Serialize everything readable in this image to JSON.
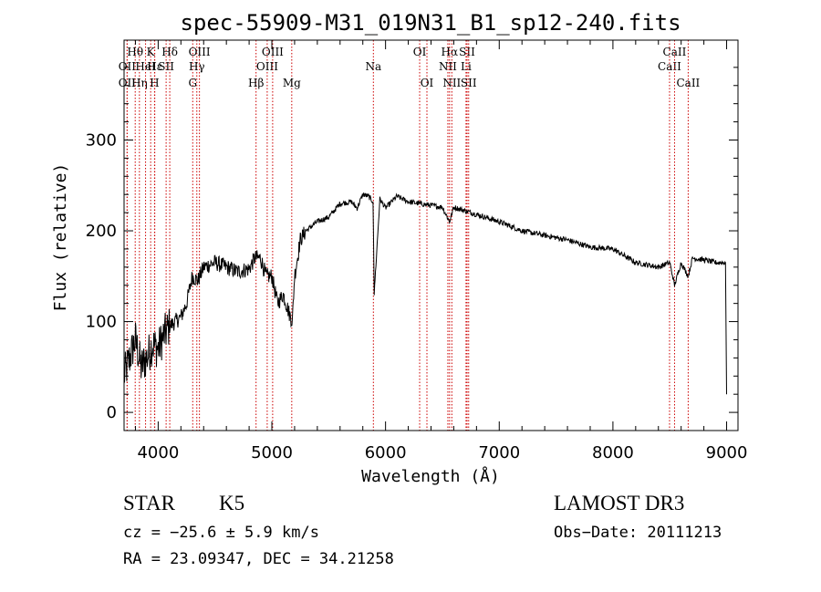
{
  "chart_data": {
    "type": "line",
    "title": "spec-55909-M31_019N31_B1_sp12-240.fits",
    "xlabel": "Wavelength (Å)",
    "ylabel": "Flux (relative)",
    "xlim": [
      3700,
      9100
    ],
    "ylim": [
      -20,
      410
    ],
    "xticks": [
      {
        "value": 4000,
        "label": "4000"
      },
      {
        "value": 5000,
        "label": "5000"
      },
      {
        "value": 6000,
        "label": "6000"
      },
      {
        "value": 7000,
        "label": "7000"
      },
      {
        "value": 8000,
        "label": "8000"
      },
      {
        "value": 9000,
        "label": "9000"
      }
    ],
    "yticks": [
      {
        "value": 0,
        "label": "0"
      },
      {
        "value": 100,
        "label": "100"
      },
      {
        "value": 200,
        "label": "200"
      },
      {
        "value": 300,
        "label": "300"
      }
    ],
    "series": [
      {
        "name": "flux",
        "x": [
          3700,
          3750,
          3800,
          3850,
          3900,
          3950,
          4000,
          4050,
          4100,
          4150,
          4200,
          4250,
          4300,
          4350,
          4400,
          4500,
          4600,
          4700,
          4800,
          4850,
          4900,
          4950,
          5000,
          5050,
          5100,
          5150,
          5180,
          5200,
          5250,
          5300,
          5400,
          5500,
          5600,
          5700,
          5750,
          5800,
          5850,
          5890,
          5900,
          5950,
          6000,
          6100,
          6200,
          6300,
          6400,
          6500,
          6563,
          6600,
          6700,
          6800,
          7000,
          7200,
          7400,
          7600,
          7800,
          8000,
          8200,
          8400,
          8500,
          8542,
          8600,
          8662,
          8700,
          8800,
          8900,
          8990,
          9000
        ],
        "y": [
          40,
          60,
          80,
          50,
          60,
          75,
          70,
          85,
          95,
          100,
          105,
          120,
          150,
          145,
          160,
          165,
          160,
          155,
          158,
          170,
          170,
          150,
          150,
          120,
          130,
          110,
          100,
          150,
          190,
          200,
          210,
          215,
          230,
          232,
          225,
          240,
          238,
          232,
          130,
          235,
          225,
          238,
          232,
          230,
          228,
          226,
          210,
          226,
          222,
          218,
          210,
          200,
          195,
          190,
          182,
          180,
          165,
          160,
          165,
          140,
          165,
          150,
          170,
          168,
          165,
          165,
          20
        ]
      }
    ],
    "emission_lines": [
      {
        "wave": 3727,
        "label": "OII",
        "row": 2
      },
      {
        "wave": 3727,
        "label": "OII",
        "row": 3
      },
      {
        "wave": 3798,
        "label": "Hθ",
        "row": 1
      },
      {
        "wave": 3835,
        "label": "Hη",
        "row": 3
      },
      {
        "wave": 3889,
        "label": "HeI",
        "row": 2
      },
      {
        "wave": 3934,
        "label": "K",
        "row": 1
      },
      {
        "wave": 3968,
        "label": "H",
        "row": 3
      },
      {
        "wave": 3970,
        "label": "Hε",
        "row": 2
      },
      {
        "wave": 4070,
        "label": "SII",
        "row": 2
      },
      {
        "wave": 4102,
        "label": "Hδ",
        "row": 1
      },
      {
        "wave": 4304,
        "label": "G",
        "row": 3
      },
      {
        "wave": 4340,
        "label": "Hγ",
        "row": 2
      },
      {
        "wave": 4363,
        "label": "OIII",
        "row": 1
      },
      {
        "wave": 4861,
        "label": "Hβ",
        "row": 3
      },
      {
        "wave": 4959,
        "label": "OIII",
        "row": 2
      },
      {
        "wave": 5007,
        "label": "OIII",
        "row": 1
      },
      {
        "wave": 5175,
        "label": "Mg",
        "row": 3
      },
      {
        "wave": 5893,
        "label": "Na",
        "row": 2
      },
      {
        "wave": 6300,
        "label": "OI",
        "row": 1
      },
      {
        "wave": 6364,
        "label": "OI",
        "row": 3
      },
      {
        "wave": 6548,
        "label": "NII",
        "row": 2
      },
      {
        "wave": 6563,
        "label": "Hα",
        "row": 1
      },
      {
        "wave": 6583,
        "label": "NII",
        "row": 3
      },
      {
        "wave": 6708,
        "label": "Li",
        "row": 2
      },
      {
        "wave": 6717,
        "label": "SII",
        "row": 1
      },
      {
        "wave": 6731,
        "label": "SII",
        "row": 3
      },
      {
        "wave": 8498,
        "label": "CaII",
        "row": 2
      },
      {
        "wave": 8542,
        "label": "CaII",
        "row": 1
      },
      {
        "wave": 8662,
        "label": "CaII",
        "row": 3
      }
    ]
  },
  "info": {
    "object_class": "STAR",
    "subclass": "K5",
    "survey": "LAMOST DR3",
    "cz": "cz = −25.6 ± 5.9 km/s",
    "obs_date": "Obs−Date: 20111213",
    "coords": "RA =  23.09347, DEC =  34.21258"
  },
  "colors": {
    "line_marker": "#cc0000",
    "spectrum": "#000000",
    "axes": "#000000"
  }
}
